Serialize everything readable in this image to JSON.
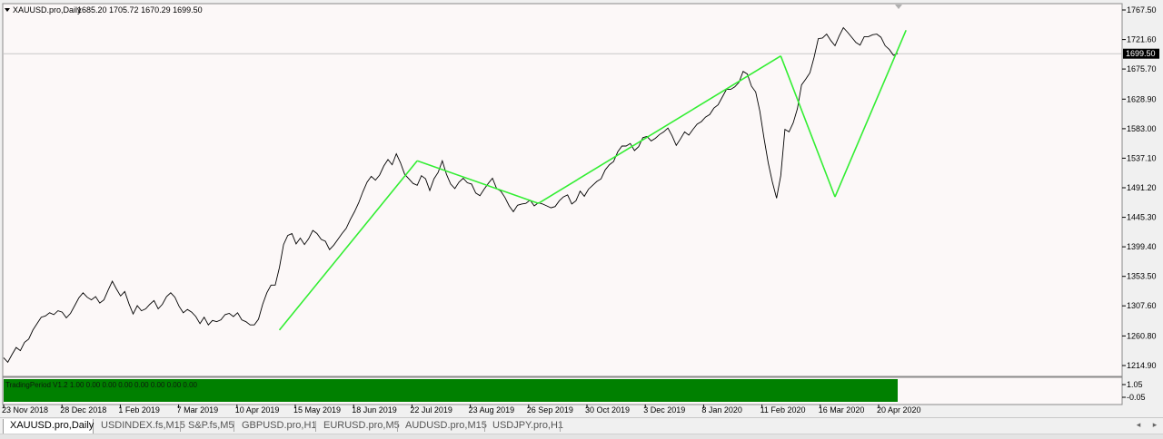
{
  "chart": {
    "symbol_label": "XAUUSD.pro,Daily",
    "ohlc_text": "1685.20 1705.72 1670.29 1699.50",
    "current_price": "1699.50",
    "price_labels": [
      "1767.50",
      "1721.60",
      "1675.70",
      "1628.90",
      "1583.00",
      "1537.10",
      "1491.20",
      "1445.30",
      "1399.40",
      "1353.50",
      "1307.60",
      "1260.80",
      "1214.90"
    ],
    "date_labels": [
      "23 Nov 2018",
      "28 Dec 2018",
      "1 Feb 2019",
      "7 Mar 2019",
      "10 Apr 2019",
      "15 May 2019",
      "18 Jun 2019",
      "22 Jul 2019",
      "23 Aug 2019",
      "26 Sep 2019",
      "30 Oct 2019",
      "3 Dec 2019",
      "8 Jan 2020",
      "11 Feb 2020",
      "16 Mar 2020",
      "20 Apr 2020"
    ],
    "colors": {
      "chart_bg": "#fcf8f8",
      "price_line": "#000000",
      "zigzag": "#33ee33",
      "indicator_fill": "#008000",
      "current_price_box": "#000000"
    }
  },
  "chart_data": {
    "type": "line",
    "title": "XAUUSD.pro,Daily",
    "ylim": [
      1200,
      1780
    ],
    "series": [
      {
        "values": [
          1227,
          1220,
          1232,
          1243,
          1238,
          1251,
          1256,
          1270,
          1280,
          1290,
          1292,
          1297,
          1294,
          1300,
          1298,
          1289,
          1296,
          1308,
          1320,
          1328,
          1321,
          1317,
          1322,
          1312,
          1317,
          1332,
          1346,
          1334,
          1323,
          1330,
          1311,
          1295,
          1308,
          1300,
          1303,
          1310,
          1316,
          1303,
          1310,
          1322,
          1328,
          1321,
          1307,
          1297,
          1302,
          1298,
          1291,
          1280,
          1290,
          1278,
          1285,
          1283,
          1286,
          1294,
          1296,
          1291,
          1297,
          1286,
          1283,
          1278,
          1278,
          1287,
          1310,
          1328,
          1340,
          1340,
          1367,
          1403,
          1417,
          1420,
          1404,
          1413,
          1403,
          1412,
          1425,
          1420,
          1411,
          1408,
          1395,
          1402,
          1411,
          1420,
          1428,
          1442,
          1454,
          1468,
          1485,
          1500,
          1509,
          1503,
          1511,
          1525,
          1535,
          1527,
          1544,
          1530,
          1512,
          1505,
          1498,
          1495,
          1510,
          1505,
          1487,
          1505,
          1515,
          1533,
          1512,
          1497,
          1490,
          1500,
          1506,
          1499,
          1497,
          1483,
          1479,
          1489,
          1498,
          1506,
          1490,
          1486,
          1476,
          1463,
          1454,
          1464,
          1466,
          1467,
          1472,
          1463,
          1468,
          1466,
          1463,
          1460,
          1462,
          1471,
          1477,
          1480,
          1466,
          1471,
          1486,
          1478,
          1489,
          1495,
          1501,
          1505,
          1519,
          1527,
          1532,
          1547,
          1556,
          1556,
          1560,
          1549,
          1555,
          1569,
          1571,
          1564,
          1568,
          1574,
          1578,
          1584,
          1572,
          1557,
          1567,
          1578,
          1573,
          1582,
          1590,
          1594,
          1601,
          1605,
          1615,
          1620,
          1632,
          1644,
          1644,
          1648,
          1655,
          1672,
          1668,
          1649,
          1640,
          1610,
          1568,
          1530,
          1500,
          1475,
          1510,
          1582,
          1578,
          1592,
          1614,
          1651,
          1660,
          1670,
          1694,
          1723,
          1724,
          1730,
          1720,
          1712,
          1727,
          1740,
          1733,
          1725,
          1717,
          1713,
          1726,
          1726,
          1729,
          1730,
          1725,
          1712,
          1706,
          1697,
          1700
        ]
      }
    ],
    "zigzag": [
      {
        "i": 66,
        "v": 1270
      },
      {
        "i": 99,
        "v": 1533
      },
      {
        "i": 128,
        "v": 1467
      },
      {
        "i": 186,
        "v": 1696
      },
      {
        "i": 199,
        "v": 1477
      },
      {
        "i": 216,
        "v": 1736
      }
    ]
  },
  "indicator": {
    "text": "TradingPeriod V1.2 1.00 0.00 0.00 0.00 0.00 0.00 0.00 0.00",
    "scale_top": "1.05",
    "scale_bottom": "-0.05"
  },
  "tabs": [
    {
      "label": "XAUUSD.pro,Daily",
      "active": true
    },
    {
      "label": "USDINDEX.fs,M15"
    },
    {
      "label": "S&P.fs,M5"
    },
    {
      "label": "GBPUSD.pro,H1"
    },
    {
      "label": "EURUSD.pro,M5"
    },
    {
      "label": "AUDUSD.pro,M15"
    },
    {
      "label": "USDJPY.pro,H1"
    }
  ]
}
